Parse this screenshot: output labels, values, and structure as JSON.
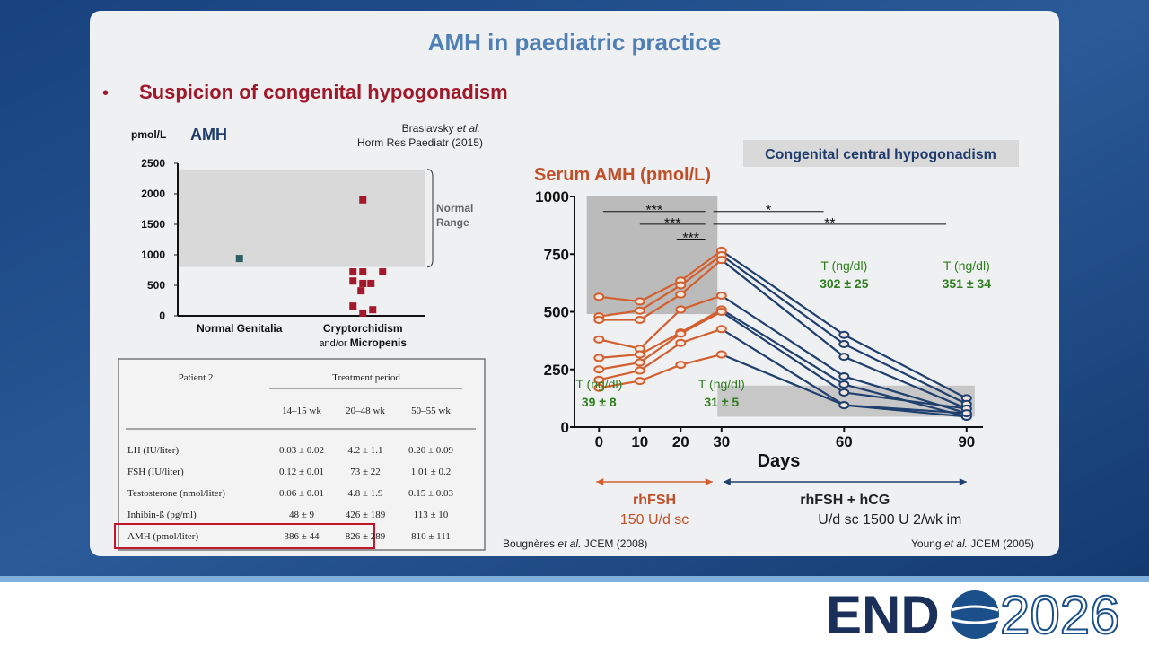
{
  "slide": {
    "title": "AMH in paediatric practice",
    "bullet": "•",
    "heading": "Suspicion of congenital hypogonadism"
  },
  "chart_data": [
    {
      "type": "strip",
      "title": "AMH",
      "y_unit": "pmol/L",
      "citation": {
        "author": "Braslavsky ",
        "etal": "et al.",
        "source": "Horm Res Paediatr (2015)"
      },
      "categories": [
        "Normal Genitalia",
        "Cryptorchidism"
      ],
      "category_note": {
        "prefix": "and/or ",
        "bold": "Micropenis"
      },
      "groups": [
        {
          "color": "#2b5f63",
          "values": [
            940
          ]
        },
        {
          "color": "#a3182b",
          "values": [
            1900,
            720,
            720,
            720,
            570,
            530,
            530,
            410,
            160,
            100,
            45
          ]
        }
      ],
      "ylim": [
        0,
        2500
      ],
      "yticks": [
        0,
        500,
        1000,
        1500,
        2000,
        2500
      ],
      "band": {
        "from": 800,
        "to": 2400,
        "color": "#d9d9d9",
        "label": [
          "Normal",
          "Range"
        ]
      }
    },
    {
      "type": "line",
      "title": "Serum AMH (pmol/L)",
      "box_label": "Congenital central hypogonadism",
      "x_label": "Days",
      "x": [
        0,
        10,
        20,
        30,
        60,
        90
      ],
      "xlim": [
        -6,
        94
      ],
      "xticks": [
        0,
        10,
        20,
        30,
        60,
        90
      ],
      "ylim": [
        0,
        1000
      ],
      "yticks": [
        0,
        250,
        500,
        750,
        1000
      ],
      "series": [
        {
          "values": [
            565,
            545,
            635,
            765,
            400,
            125
          ]
        },
        {
          "values": [
            480,
            505,
            615,
            745,
            360,
            100
          ]
        },
        {
          "values": [
            465,
            465,
            575,
            725,
            305,
            80
          ]
        },
        {
          "values": [
            380,
            340,
            510,
            570,
            220,
            60
          ]
        },
        {
          "values": [
            300,
            315,
            410,
            510,
            185,
            45
          ]
        },
        {
          "values": [
            250,
            280,
            405,
            500,
            150,
            80
          ]
        },
        {
          "values": [
            205,
            245,
            365,
            425,
            95,
            45
          ]
        },
        {
          "values": [
            170,
            200,
            270,
            315,
            95,
            60
          ]
        }
      ],
      "phases": [
        {
          "label": "rhFSH",
          "dose": "150 U/d sc",
          "color": "#d35f2f",
          "text_color": "#c0502a",
          "start": 0,
          "end": 30
        },
        {
          "label": "rhFSH  +  hCG",
          "dose": "U/d sc      1500 U   2/wk   im",
          "color": "#1f3f6e",
          "text_color": "#222222",
          "start": 30,
          "end": 90
        }
      ],
      "bands": [
        {
          "x0": -3,
          "x1": 29,
          "y0": 490,
          "y1": 1000,
          "color": "#a9a9a9"
        },
        {
          "x0": 29,
          "x1": 92,
          "y0": 45,
          "y1": 180,
          "color": "#b9b9b9"
        }
      ],
      "significance": [
        {
          "label": "***",
          "from": 1,
          "to": 26,
          "y": 935
        },
        {
          "label": "***",
          "from": 10,
          "to": 26,
          "y": 880
        },
        {
          "label": "***",
          "from": 19,
          "to": 26,
          "y": 815
        },
        {
          "label": "*",
          "from": 28,
          "to": 55,
          "y": 935
        },
        {
          "label": "**",
          "from": 28,
          "to": 85,
          "y": 880
        }
      ],
      "annotations": [
        {
          "label": "T (ng/dl)",
          "value": "39 ± 8",
          "x": 0,
          "y": 120
        },
        {
          "label": "T (ng/dl)",
          "value": "31 ± 5",
          "x": 30,
          "y": 120
        },
        {
          "label": "T (ng/dl)",
          "value": "302 ± 25",
          "x": 60,
          "y": 635
        },
        {
          "label": "T (ng/dl)",
          "value": "351 ± 34",
          "x": 90,
          "y": 635
        }
      ],
      "annotation_color": "#2e7d1e",
      "citations": [
        {
          "author": "Bougnères ",
          "etal": "et al.",
          "source": "  JCEM (2008)"
        },
        {
          "author": "Young ",
          "etal": "et al.",
          "source": "  JCEM (2005)"
        }
      ]
    }
  ],
  "table": {
    "title": "Patient 2",
    "group_header": "Treatment period",
    "columns": [
      "14–15 wk",
      "20–48 wk",
      "50–55 wk"
    ],
    "rows": [
      [
        "LH (IU/liter)",
        "0.03 ± 0.02",
        "4.2 ± 1.1",
        "0.20 ± 0.09"
      ],
      [
        "FSH (IU/liter)",
        "0.12 ± 0.01",
        "73 ± 22",
        "1.01 ± 0.2"
      ],
      [
        "Testosterone (nmol/liter)",
        "0.06 ± 0.01",
        "4.8 ± 1.9",
        "0.15 ± 0.03"
      ],
      [
        "Inhibin-ß (pg/ml)",
        "48 ± 9",
        "426 ± 189",
        "113 ± 10"
      ],
      [
        "AMH (pmol/liter)",
        "386 ± 44",
        "826 ± 289",
        "810 ± 111"
      ]
    ],
    "highlight_row": 4
  },
  "footer": {
    "logo_left": "END",
    "logo_right": "2026"
  }
}
